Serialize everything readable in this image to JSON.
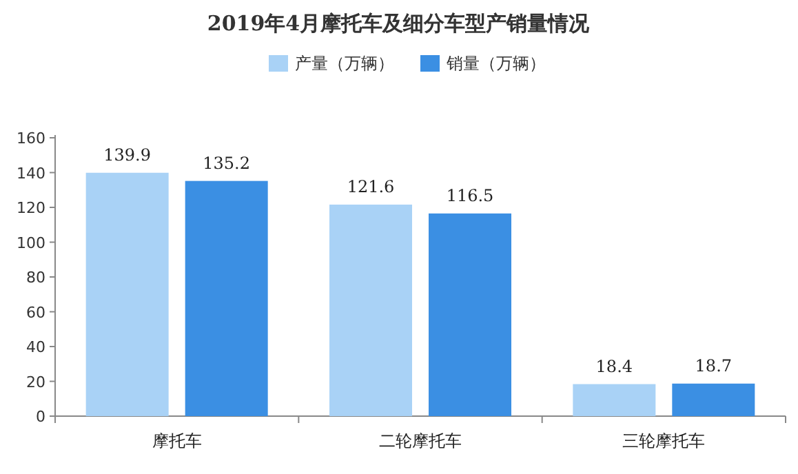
{
  "chart_data": {
    "type": "bar",
    "title": "2019年4月摩托车及细分车型产销量情况",
    "categories": [
      "摩托车",
      "二轮摩托车",
      "三轮摩托车"
    ],
    "series": [
      {
        "name": "产量（万辆）",
        "color": "#a9d2f6",
        "values": [
          139.9,
          121.6,
          18.4
        ]
      },
      {
        "name": "销量（万辆）",
        "color": "#3b8fe3",
        "values": [
          135.2,
          116.5,
          18.7
        ]
      }
    ],
    "ylim": [
      0,
      160
    ],
    "yticks": [
      0,
      20,
      40,
      60,
      80,
      100,
      120,
      140,
      160
    ],
    "data_labels": true,
    "legend": "top",
    "grid": false
  }
}
